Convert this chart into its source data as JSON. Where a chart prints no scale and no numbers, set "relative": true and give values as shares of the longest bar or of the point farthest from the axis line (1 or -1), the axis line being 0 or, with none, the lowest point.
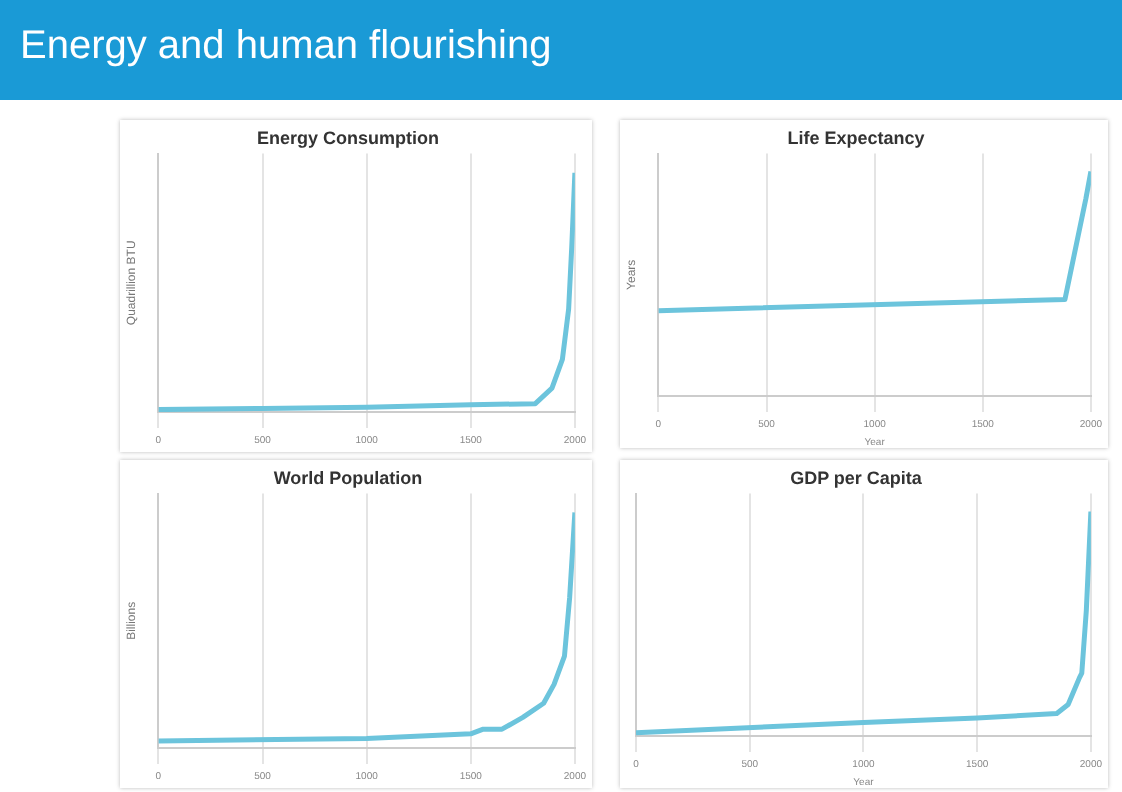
{
  "chart_data": [
    {
      "type": "other",
      "title": "Energy and human flourishing"
    },
    {
      "type": "line",
      "title": "Energy Consumption",
      "ylabel": "Quadrillion BTU",
      "relative": true,
      "xlim": [
        0,
        2000
      ],
      "xticks": [
        0,
        500,
        1000,
        1500,
        2000
      ],
      "grid": "x",
      "x": [
        0,
        500,
        1000,
        1500,
        1810,
        1890,
        1940,
        1970,
        1985,
        2000
      ],
      "series": [
        {
          "color": "#6cc4dc",
          "values": [
            0.01,
            0.015,
            0.02,
            0.03,
            0.035,
            0.1,
            0.22,
            0.43,
            0.69,
            1
          ]
        }
      ]
    },
    {
      "type": "line",
      "title": "Life Expectancy",
      "ylabel": "Years",
      "xlabel": "Year",
      "relative": true,
      "xlim": [
        0,
        2000
      ],
      "xticks": [
        0,
        500,
        1000,
        1500,
        2000
      ],
      "grid": "x",
      "x": [
        0,
        1880,
        1977,
        2000
      ],
      "series": [
        {
          "color": "#6cc4dc",
          "values": [
            0.38,
            0.43,
            0.88,
            1
          ]
        }
      ]
    },
    {
      "type": "line",
      "title": "World Population",
      "ylabel": "Billions",
      "relative": true,
      "xlim": [
        0,
        2000
      ],
      "xticks": [
        0,
        500,
        1000,
        1500,
        2000
      ],
      "grid": "x",
      "x": [
        0,
        1000,
        1500,
        1560,
        1650,
        1750,
        1850,
        1900,
        1950,
        1975,
        2000
      ],
      "series": [
        {
          "color": "#6cc4dc",
          "values": [
            0.03,
            0.04,
            0.06,
            0.08,
            0.08,
            0.13,
            0.19,
            0.27,
            0.39,
            0.64,
            1
          ]
        }
      ]
    },
    {
      "type": "line",
      "title": "GDP per Capita",
      "xlabel": "Year",
      "relative": true,
      "xlim": [
        0,
        2000
      ],
      "xticks": [
        0,
        500,
        1000,
        1500,
        2000
      ],
      "grid": "x",
      "x": [
        0,
        1000,
        1500,
        1850,
        1900,
        1950,
        1960,
        1980,
        2000
      ],
      "series": [
        {
          "color": "#6cc4dc",
          "values": [
            0.015,
            0.06,
            0.08,
            0.1,
            0.14,
            0.26,
            0.28,
            0.56,
            1
          ]
        }
      ]
    }
  ]
}
